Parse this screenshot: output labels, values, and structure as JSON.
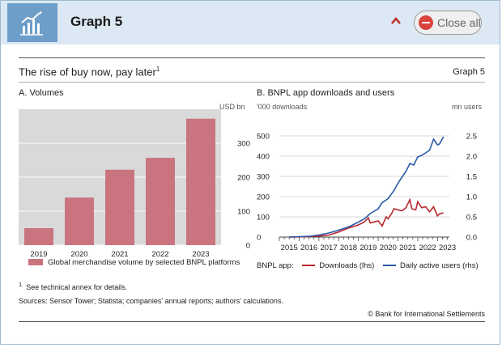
{
  "header": {
    "title": "Graph 5",
    "close_label": "Close all",
    "collapse_glyph": "^",
    "icon": "chart-icon"
  },
  "figure": {
    "title": "The rise of buy now, pay later",
    "title_footnote": "1",
    "tag": "Graph 5",
    "footnote_marker": "1",
    "footnote_text": "See technical annex for details.",
    "sources": "Sources: Sensor Tower; Statista; companies' annual reports; authors' calculations.",
    "copyright": "© Bank for International Settlements"
  },
  "chart_data": [
    {
      "type": "bar",
      "title": "A. Volumes",
      "unit": "USD bn",
      "categories": [
        "2019",
        "2020",
        "2021",
        "2022",
        "2023"
      ],
      "series": [
        {
          "name": "Global merchandise volume by selected BNPL platforms",
          "values": [
            50,
            140,
            222,
            257,
            372
          ],
          "color": "#c9747f"
        }
      ],
      "ylim": [
        0,
        400
      ],
      "yticks": [
        "0",
        "100",
        "200",
        "300"
      ],
      "ytick_values": [
        0,
        100,
        200,
        300
      ],
      "background": "#d9d9d9"
    },
    {
      "type": "line",
      "title": "B. BNPL app downloads and users",
      "left_unit": "'000 downloads",
      "right_unit": "mn users",
      "legend_prefix": "BNPL app:",
      "x_ticks": [
        "2015",
        "2016",
        "2017",
        "2018",
        "2019",
        "2020",
        "2021",
        "2022",
        "2023"
      ],
      "xlim": [
        2015,
        2023.6
      ],
      "left_ylim": [
        0,
        560
      ],
      "right_ylim": [
        0,
        2.8
      ],
      "left_ticks": [
        "0",
        "100",
        "200",
        "300",
        "400",
        "500"
      ],
      "left_tick_values": [
        0,
        100,
        200,
        300,
        400,
        500
      ],
      "right_ticks": [
        "0.0",
        "0.5",
        "1.0",
        "1.5",
        "2.0",
        "2.5"
      ],
      "right_tick_values": [
        0,
        0.5,
        1.0,
        1.5,
        2.0,
        2.5
      ],
      "series": [
        {
          "name": "Downloads (lhs)",
          "axis": "left",
          "color": "#b8282c",
          "x": [
            2015.5,
            2016,
            2016.5,
            2017,
            2017.5,
            2018,
            2018.5,
            2019,
            2019.3,
            2019.5,
            2019.6,
            2019.8,
            2020,
            2020.2,
            2020.4,
            2020.5,
            2020.7,
            2020.8,
            2021,
            2021.2,
            2021.4,
            2021.6,
            2021.7,
            2021.9,
            2022,
            2022.2,
            2022.4,
            2022.6,
            2022.8,
            2023,
            2023.1,
            2023.3
          ],
          "y": [
            0,
            1,
            2,
            5,
            10,
            25,
            45,
            60,
            75,
            95,
            70,
            75,
            80,
            55,
            100,
            90,
            120,
            140,
            135,
            130,
            145,
            185,
            140,
            135,
            175,
            145,
            150,
            125,
            150,
            105,
            115,
            120
          ]
        },
        {
          "name": "Daily active users (rhs)",
          "axis": "right",
          "color": "#2a5aa8",
          "x": [
            2015.5,
            2016,
            2016.5,
            2017,
            2017.5,
            2018,
            2018.5,
            2019,
            2019.3,
            2019.6,
            2020,
            2020.2,
            2020.5,
            2020.8,
            2021,
            2021.2,
            2021.4,
            2021.6,
            2021.8,
            2022,
            2022.2,
            2022.4,
            2022.6,
            2022.8,
            2023,
            2023.1,
            2023.3
          ],
          "y": [
            0.0,
            0.01,
            0.02,
            0.05,
            0.1,
            0.17,
            0.25,
            0.37,
            0.45,
            0.58,
            0.7,
            0.85,
            0.95,
            1.15,
            1.33,
            1.48,
            1.62,
            1.82,
            1.78,
            1.98,
            2.02,
            2.08,
            2.15,
            2.42,
            2.28,
            2.3,
            2.48
          ]
        }
      ]
    }
  ]
}
